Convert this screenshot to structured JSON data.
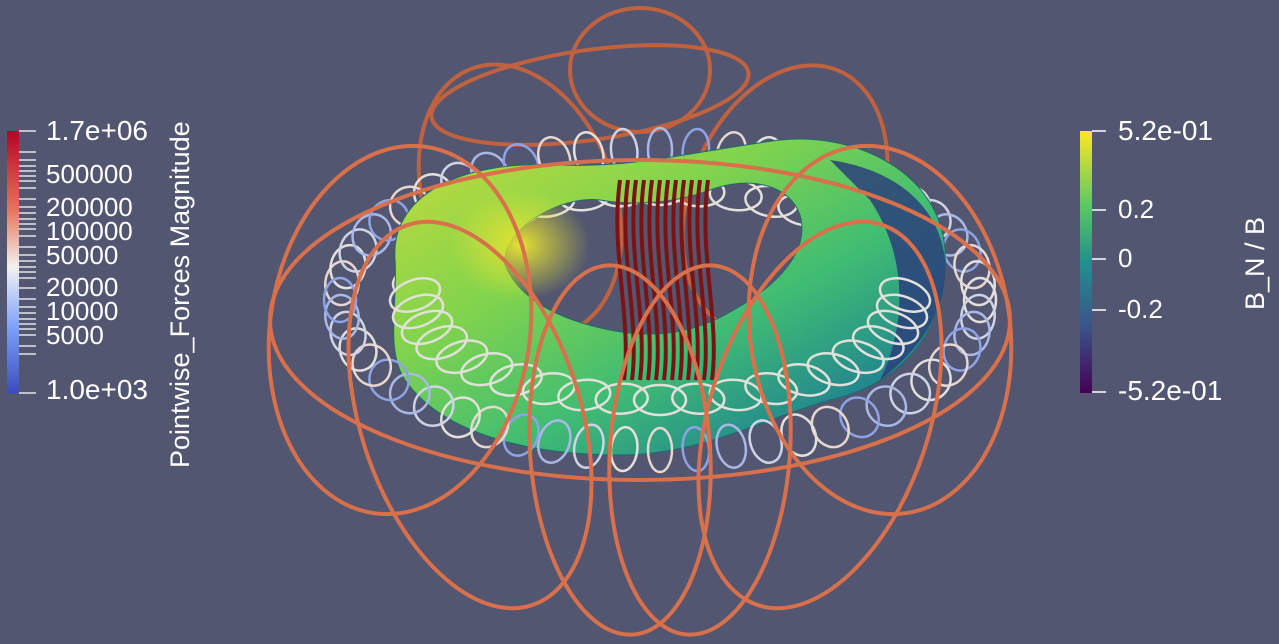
{
  "viewer": {
    "background": "#525670"
  },
  "left_colorbar": {
    "title": "Pointwise_Forces Magnitude",
    "top_label": "1.7e+06",
    "bottom_label": "1.0e+03",
    "tick_labels": [
      "500000",
      "200000",
      "100000",
      "50000",
      "20000",
      "10000",
      "5000"
    ],
    "colors": [
      "#b40426",
      "#e7745b",
      "#f2f2f2",
      "#7da0f9",
      "#3b4cc0"
    ]
  },
  "right_colorbar": {
    "title": "B_N / B",
    "top_label": "5.2e-01",
    "bottom_label": "-5.2e-01",
    "tick_labels": [
      "0.2",
      "0",
      "-0.2"
    ],
    "colors": [
      "#fde725",
      "#5ec962",
      "#21918c",
      "#3b528b",
      "#440154"
    ]
  },
  "scene": {
    "surface_colors": [
      "#c8dc3a",
      "#7fd34e",
      "#3fbc73",
      "#23888e",
      "#2a4c84"
    ],
    "tf_coil_color": "#d8704c",
    "inner_coil_color": "#7a1414",
    "dipole_color": "#dcdcd8"
  }
}
